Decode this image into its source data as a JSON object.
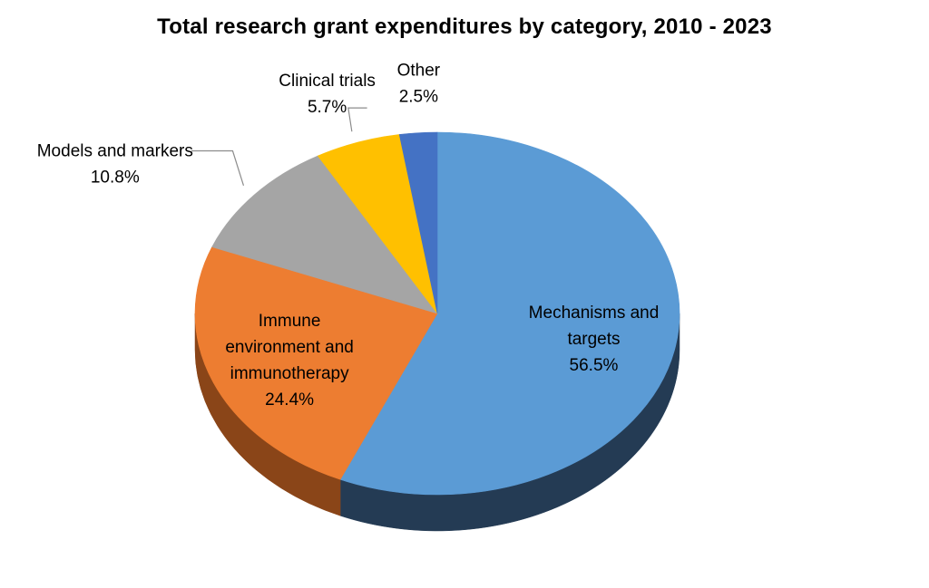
{
  "chart_data": {
    "type": "pie",
    "title": "Total research grant expenditures by category, 2010 - 2023",
    "three_d": true,
    "start_angle": "12 o'clock, clockwise",
    "slices": [
      {
        "name": "Mechanisms and targets",
        "value": 56.5,
        "label_lines": [
          "Mechanisms and",
          "targets"
        ],
        "pct_label": "56.5%",
        "color": "#5B9BD5",
        "side_color": "#243B54"
      },
      {
        "name": "Immune environment and immunotherapy",
        "value": 24.4,
        "label_lines": [
          "Immune",
          "environment and",
          "immunotherapy"
        ],
        "pct_label": "24.4%",
        "color": "#ED7D31",
        "side_color": "#8A4518"
      },
      {
        "name": "Models and markers",
        "value": 10.8,
        "label_lines": [
          "Models and markers"
        ],
        "pct_label": "10.8%",
        "color": "#A5A5A5",
        "side_color": "#666666"
      },
      {
        "name": "Clinical trials",
        "value": 5.7,
        "label_lines": [
          "Clinical trials"
        ],
        "pct_label": "5.7%",
        "color": "#FFC000",
        "side_color": "#9E7700"
      },
      {
        "name": "Other",
        "value": 2.5,
        "label_lines": [
          "Other"
        ],
        "pct_label": "2.5%",
        "color": "#4472C4",
        "side_color": "#2A4778"
      }
    ]
  }
}
